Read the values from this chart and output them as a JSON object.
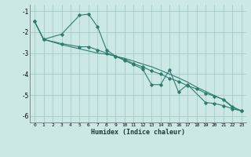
{
  "xlabel": "Humidex (Indice chaleur)",
  "bg_color": "#cce8e5",
  "grid_color": "#aacfcc",
  "line_color": "#2d7d6e",
  "xlim": [
    -0.5,
    23.5
  ],
  "ylim": [
    -6.3,
    -0.7
  ],
  "yticks": [
    -6,
    -5,
    -4,
    -3,
    -2,
    -1
  ],
  "xticks": [
    0,
    1,
    2,
    3,
    4,
    5,
    6,
    7,
    8,
    9,
    10,
    11,
    12,
    13,
    14,
    15,
    16,
    17,
    18,
    19,
    20,
    21,
    22,
    23
  ],
  "s1_x": [
    0,
    1,
    3,
    5,
    6,
    7,
    8,
    9,
    10,
    11,
    12,
    13,
    14,
    15,
    16,
    17,
    19,
    20,
    21,
    22,
    23
  ],
  "s1_y": [
    -1.5,
    -2.35,
    -2.1,
    -1.2,
    -1.15,
    -1.75,
    -2.85,
    -3.15,
    -3.35,
    -3.55,
    -3.75,
    -4.5,
    -4.5,
    -3.8,
    -4.85,
    -4.5,
    -5.35,
    -5.4,
    -5.5,
    -5.65,
    -5.75
  ],
  "s2_x": [
    0,
    1,
    3,
    5,
    6,
    7,
    8,
    9,
    10,
    11,
    12,
    13,
    14,
    15,
    16,
    17,
    18,
    19,
    20,
    21,
    22,
    23
  ],
  "s2_y": [
    -1.5,
    -2.35,
    -2.55,
    -2.7,
    -2.7,
    -2.85,
    -3.0,
    -3.15,
    -3.3,
    -3.5,
    -3.65,
    -3.85,
    -4.0,
    -4.2,
    -4.35,
    -4.55,
    -4.7,
    -4.9,
    -5.05,
    -5.2,
    -5.55,
    -5.75
  ],
  "s3_x": [
    0,
    1,
    3,
    5,
    6,
    7,
    8,
    9,
    10,
    11,
    12,
    13,
    14,
    15,
    16,
    17,
    18,
    19,
    20,
    21,
    22,
    23
  ],
  "s3_y": [
    -1.5,
    -2.35,
    -2.6,
    -2.8,
    -2.9,
    -3.0,
    -3.05,
    -3.15,
    -3.25,
    -3.38,
    -3.52,
    -3.65,
    -3.82,
    -4.0,
    -4.18,
    -4.38,
    -4.62,
    -4.82,
    -5.02,
    -5.22,
    -5.58,
    -5.75
  ]
}
